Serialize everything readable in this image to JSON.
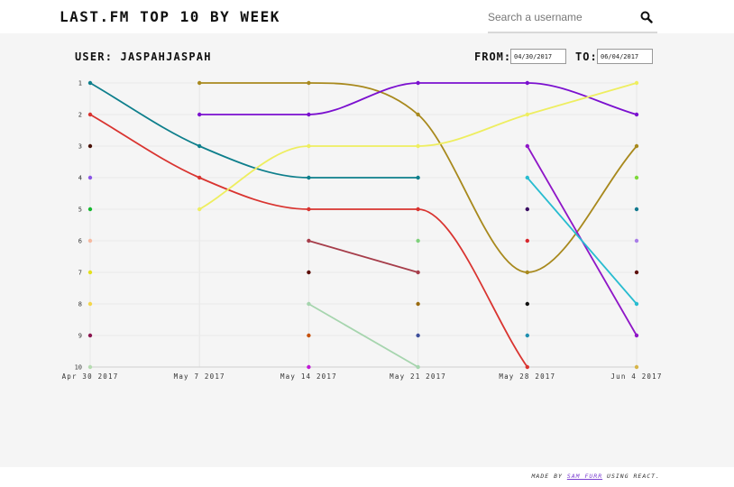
{
  "header": {
    "title": "LAST.FM TOP 10 BY WEEK",
    "search_placeholder": "Search a username",
    "search_icon": "magnifier-icon"
  },
  "controls": {
    "user_label": "USER: JASPAHJASPAH",
    "from_label": "FROM:",
    "from_value": "04/30/2017",
    "to_label": "TO:",
    "to_value": "06/04/2017"
  },
  "footer": {
    "prefix": "MADE BY ",
    "author": "SAM FURR",
    "suffix": " USING REACT."
  },
  "chart_data": {
    "type": "line",
    "title": "",
    "xlabel": "",
    "ylabel": "",
    "x": [
      "Apr 30 2017",
      "May 7 2017",
      "May 14 2017",
      "May 21 2017",
      "May 28 2017",
      "Jun 4 2017"
    ],
    "yticks": [
      "1",
      "2",
      "3",
      "4",
      "5",
      "6",
      "7",
      "8",
      "9",
      "10"
    ],
    "ylim": [
      1,
      10
    ],
    "y_inverted": true,
    "grid": true,
    "series": [
      {
        "color": "#0e7f8c",
        "values": [
          1,
          3,
          4,
          4,
          null,
          null
        ]
      },
      {
        "color": "#d93430",
        "values": [
          2,
          4,
          5,
          5,
          10,
          null
        ]
      },
      {
        "color": "#4a1208",
        "values": [
          3,
          null,
          null,
          null,
          null,
          null
        ]
      },
      {
        "color": "#8a55e6",
        "values": [
          4,
          null,
          null,
          null,
          null,
          null
        ]
      },
      {
        "color": "#16b82f",
        "values": [
          5,
          null,
          null,
          null,
          null,
          null
        ]
      },
      {
        "color": "#f6b9a0",
        "values": [
          6,
          null,
          null,
          null,
          null,
          null
        ]
      },
      {
        "color": "#e4e01c",
        "values": [
          7,
          null,
          null,
          null,
          null,
          null
        ]
      },
      {
        "color": "#f4d64a",
        "values": [
          8,
          null,
          null,
          null,
          null,
          null
        ]
      },
      {
        "color": "#8b1650",
        "values": [
          9,
          null,
          null,
          null,
          null,
          null
        ]
      },
      {
        "color": "#b5dcb0",
        "values": [
          10,
          null,
          null,
          null,
          null,
          null
        ]
      },
      {
        "color": "#a8891d",
        "values": [
          null,
          1,
          1,
          2,
          7,
          3
        ]
      },
      {
        "color": "#7b10cf",
        "values": [
          null,
          2,
          2,
          1,
          1,
          2
        ]
      },
      {
        "color": "#eeee60",
        "values": [
          null,
          5,
          3,
          3,
          2,
          1
        ]
      },
      {
        "color": "#a63d4a",
        "values": [
          null,
          null,
          6,
          7,
          null,
          null
        ]
      },
      {
        "color": "#5b0c05",
        "values": [
          null,
          null,
          7,
          null,
          null,
          null
        ]
      },
      {
        "color": "#a6d5ae",
        "values": [
          null,
          null,
          8,
          10,
          null,
          null
        ]
      },
      {
        "color": "#c7520c",
        "values": [
          null,
          null,
          9,
          null,
          null,
          null
        ]
      },
      {
        "color": "#c11ad6",
        "values": [
          null,
          null,
          10,
          null,
          null,
          null
        ]
      },
      {
        "color": "#7fd17c",
        "values": [
          null,
          null,
          null,
          6,
          null,
          null
        ]
      },
      {
        "color": "#9a6b10",
        "values": [
          null,
          null,
          null,
          8,
          null,
          null
        ]
      },
      {
        "color": "#3e4f9b",
        "values": [
          null,
          null,
          null,
          9,
          null,
          null
        ]
      },
      {
        "color": "#8f16c7",
        "values": [
          null,
          null,
          null,
          null,
          3,
          9
        ]
      },
      {
        "color": "#28bcd0",
        "values": [
          null,
          null,
          null,
          null,
          4,
          8
        ]
      },
      {
        "color": "#3a0d62",
        "values": [
          null,
          null,
          null,
          null,
          5,
          null
        ]
      },
      {
        "color": "#d8262c",
        "values": [
          null,
          null,
          null,
          null,
          6,
          null
        ]
      },
      {
        "color": "#111111",
        "values": [
          null,
          null,
          null,
          null,
          8,
          null
        ]
      },
      {
        "color": "#1f8fb0",
        "values": [
          null,
          null,
          null,
          null,
          9,
          null
        ]
      },
      {
        "color": "#7ed93a",
        "values": [
          null,
          null,
          null,
          null,
          null,
          4
        ]
      },
      {
        "color": "#137a8f",
        "values": [
          null,
          null,
          null,
          null,
          null,
          5
        ]
      },
      {
        "color": "#a97ee8",
        "values": [
          null,
          null,
          null,
          null,
          null,
          6
        ]
      },
      {
        "color": "#5e0e09",
        "values": [
          null,
          null,
          null,
          null,
          null,
          7
        ]
      },
      {
        "color": "#d7b54a",
        "values": [
          null,
          null,
          null,
          null,
          null,
          10
        ]
      }
    ]
  }
}
